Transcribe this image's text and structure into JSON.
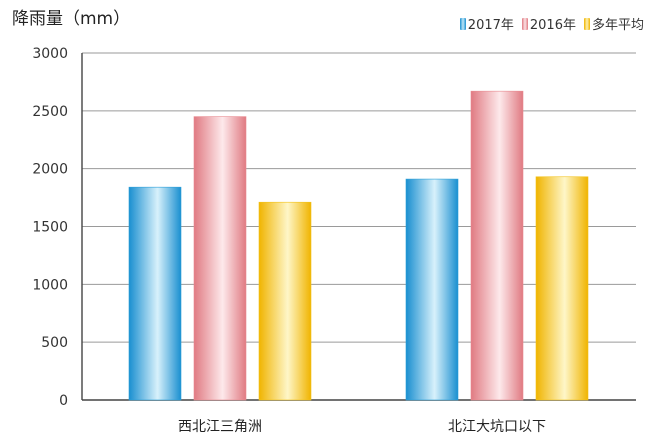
{
  "chart_data": {
    "type": "bar",
    "ylabel": "降雨量（mm）",
    "categories": [
      "西北江三角洲",
      "北江大坑口以下"
    ],
    "series": [
      {
        "name": "2017年",
        "values": [
          1840,
          1910
        ],
        "color": "#2a9fd8"
      },
      {
        "name": "2016年",
        "values": [
          2450,
          2670
        ],
        "color": "#e88a90"
      },
      {
        "name": "多年平均",
        "values": [
          1710,
          1930
        ],
        "color": "#f2c21a"
      }
    ],
    "ylim": [
      0,
      3000
    ],
    "yticks": [
      0,
      500,
      1000,
      1500,
      2000,
      2500,
      3000
    ],
    "grid": true,
    "legend": "top-right"
  }
}
